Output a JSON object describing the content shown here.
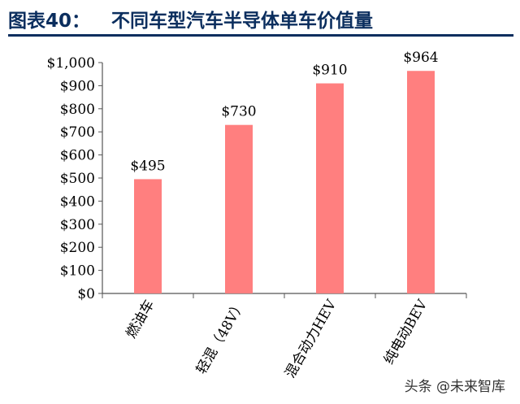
{
  "header": {
    "figure_label": "图表40：",
    "title": "不同车型汽车半导体单车价值量"
  },
  "watermark": "头条 @未来智库",
  "chart_data": {
    "type": "bar",
    "categories": [
      "燃油车",
      "轻混（48V）",
      "混合动力HEV",
      "纯电动BEV"
    ],
    "values": [
      495,
      730,
      910,
      964
    ],
    "value_labels": [
      "$495",
      "$730",
      "$910",
      "$964"
    ],
    "ylim": [
      0,
      1000
    ],
    "yticks": [
      0,
      100,
      200,
      300,
      400,
      500,
      600,
      700,
      800,
      900,
      1000
    ],
    "ytick_labels": [
      "$0",
      "$100",
      "$200",
      "$300",
      "$400",
      "$500",
      "$600",
      "$700",
      "$800",
      "$900",
      "$1,000"
    ],
    "bar_color": "#ff7f7f",
    "grid": false,
    "legend": "none"
  }
}
